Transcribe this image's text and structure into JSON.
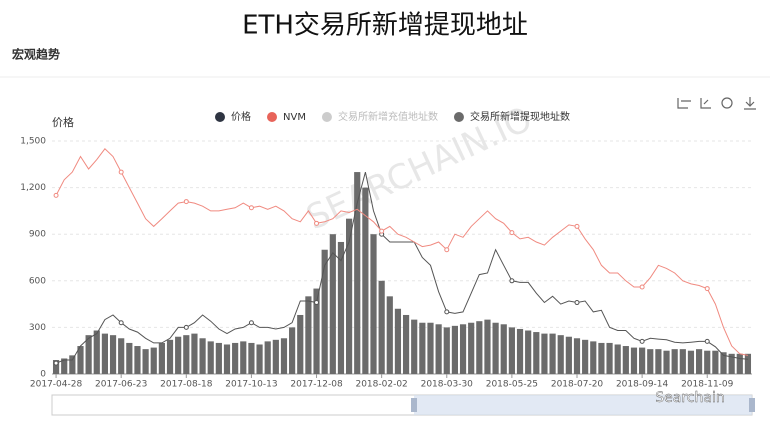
{
  "page_title": "ETH交易所新增提现地址",
  "section": "宏观趋势",
  "watermark": "SEARCHAIN.IO",
  "brand": "Searchain",
  "chart_data": {
    "type": "bar-line",
    "y_label": "价格",
    "ylim": [
      0,
      1500
    ],
    "yticks": [
      0,
      300,
      600,
      900,
      {
        "value": 1200,
        "label": "1,200"
      },
      {
        "value": 1500,
        "label": "1,500"
      }
    ],
    "grid": true,
    "categories": [
      "2017-04-28",
      null,
      null,
      null,
      null,
      null,
      null,
      null,
      "2017-06-23",
      null,
      null,
      null,
      null,
      null,
      null,
      null,
      "2017-08-18",
      null,
      null,
      null,
      null,
      null,
      null,
      null,
      "2017-10-13",
      null,
      null,
      null,
      null,
      null,
      null,
      null,
      "2017-12-08",
      null,
      null,
      null,
      null,
      null,
      null,
      null,
      "2018-02-02",
      null,
      null,
      null,
      null,
      null,
      null,
      null,
      "2018-03-30",
      null,
      null,
      null,
      null,
      null,
      null,
      null,
      "2018-05-25",
      null,
      null,
      null,
      null,
      null,
      null,
      null,
      "2018-07-20",
      null,
      null,
      null,
      null,
      null,
      null,
      null,
      "2018-09-14",
      null,
      null,
      null,
      null,
      null,
      null,
      null,
      "2018-11-09",
      null,
      null,
      null,
      null,
      null
    ],
    "series": [
      {
        "name": "价格",
        "kind": "line",
        "color": "#2f3542",
        "line_color": "#555555",
        "values": [
          70,
          90,
          90,
          180,
          230,
          260,
          350,
          380,
          330,
          290,
          270,
          230,
          200,
          200,
          230,
          300,
          300,
          330,
          380,
          340,
          290,
          260,
          290,
          300,
          330,
          300,
          300,
          290,
          300,
          330,
          470,
          470,
          460,
          700,
          780,
          730,
          850,
          1100,
          1300,
          1050,
          900,
          850,
          850,
          850,
          850,
          750,
          700,
          530,
          400,
          390,
          400,
          520,
          640,
          650,
          800,
          700,
          600,
          590,
          590,
          520,
          460,
          500,
          450,
          470,
          460,
          470,
          400,
          410,
          300,
          280,
          280,
          230,
          210,
          230,
          225,
          220,
          205,
          200,
          205,
          210,
          210,
          175,
          120,
          110,
          100,
          95
        ]
      },
      {
        "name": "NVM",
        "kind": "line",
        "color": "#e8645a",
        "line_color": "#f08a80",
        "values": [
          1150,
          1250,
          1300,
          1400,
          1320,
          1380,
          1450,
          1400,
          1300,
          1200,
          1100,
          1000,
          950,
          1000,
          1050,
          1100,
          1110,
          1100,
          1080,
          1050,
          1050,
          1060,
          1070,
          1100,
          1070,
          1080,
          1060,
          1080,
          1050,
          1000,
          980,
          1050,
          970,
          980,
          1000,
          1050,
          1040,
          1060,
          1020,
          980,
          920,
          950,
          900,
          880,
          850,
          820,
          830,
          850,
          800,
          900,
          880,
          950,
          1000,
          1050,
          1000,
          970,
          910,
          870,
          880,
          850,
          830,
          880,
          920,
          960,
          950,
          870,
          800,
          700,
          650,
          650,
          600,
          560,
          560,
          620,
          700,
          680,
          650,
          600,
          580,
          570,
          550,
          450,
          300,
          180,
          130,
          120
        ]
      },
      {
        "name": "交易所新增充值地址数",
        "kind": "hidden",
        "color": "#cccccc"
      },
      {
        "name": "交易所新增提现地址数",
        "kind": "bar",
        "color": "#6b6b6b",
        "values": [
          90,
          100,
          120,
          180,
          250,
          280,
          260,
          250,
          230,
          200,
          180,
          160,
          170,
          200,
          220,
          240,
          250,
          260,
          230,
          210,
          200,
          190,
          200,
          210,
          200,
          190,
          210,
          220,
          230,
          300,
          380,
          500,
          550,
          800,
          900,
          850,
          1000,
          1300,
          1200,
          900,
          600,
          500,
          420,
          380,
          350,
          330,
          330,
          320,
          300,
          310,
          320,
          330,
          340,
          350,
          330,
          320,
          300,
          290,
          280,
          270,
          260,
          260,
          250,
          240,
          230,
          220,
          210,
          200,
          200,
          190,
          180,
          170,
          170,
          160,
          160,
          150,
          160,
          160,
          150,
          160,
          150,
          150,
          140,
          130,
          130,
          130
        ]
      }
    ]
  }
}
